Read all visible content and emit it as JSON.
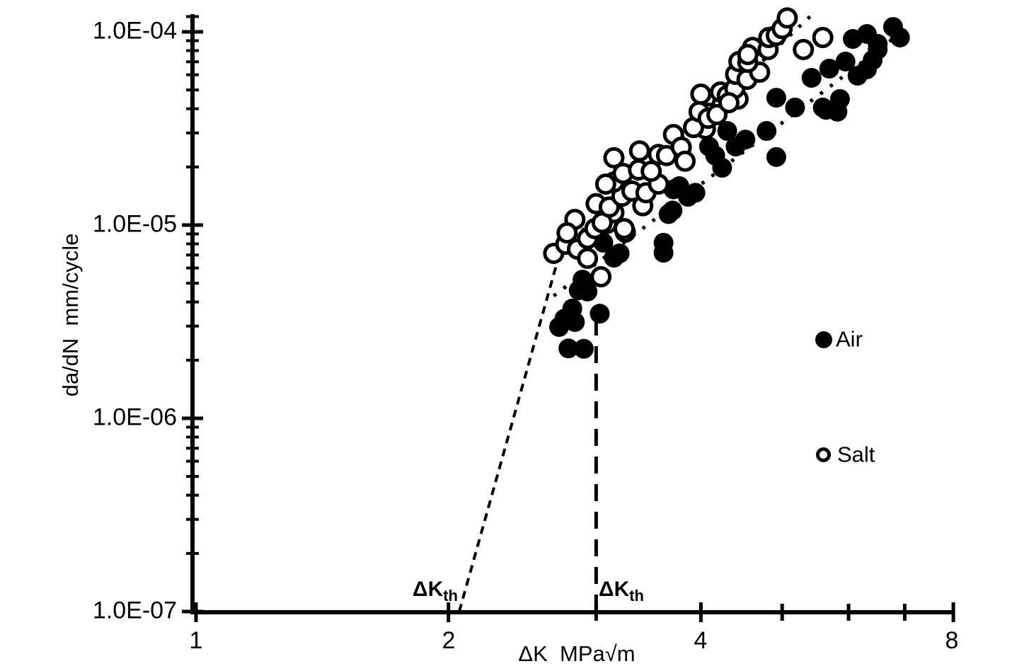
{
  "chart_data": {
    "type": "scatter",
    "title": "",
    "x_axis": {
      "title": "ΔK  MPa√m",
      "scale": "log",
      "min": 1,
      "max": 8,
      "tick_labels": [
        "1",
        "2",
        "4",
        "8"
      ],
      "ticks_major": [
        1,
        2,
        4,
        8
      ],
      "ticks_minor": [
        3,
        5,
        6,
        7
      ]
    },
    "y_axis": {
      "title": "da/dN  mm/cycle",
      "scale": "log",
      "min": 1e-07,
      "max": 0.00012,
      "tick_labels": [
        "1.0E-04",
        "1.0E-05",
        "1.0E-06",
        "1.0E-07"
      ],
      "ticks_major": [
        0.0001,
        1e-05,
        1e-06,
        1e-07
      ],
      "minor_tick_multipliers": [
        2,
        3,
        4,
        5,
        6,
        7,
        8,
        9
      ],
      "minor_tick_decades": [
        -5,
        -6,
        -7
      ],
      "top_minor_tick": 0.00012
    },
    "grid": false,
    "colors": {
      "ink": "#000000",
      "background": "#ffffff"
    },
    "legend": {
      "position": "right-middle",
      "items": [
        {
          "label": "Air",
          "marker": "filled-circle"
        },
        {
          "label": "Salt",
          "marker": "open-circle"
        }
      ]
    },
    "annotations": [
      {
        "text_main": "ΔK",
        "text_sub": "th",
        "refers_to": "Salt threshold (at ΔK ≈ 2.06)"
      },
      {
        "text_main": "ΔK",
        "text_sub": "th",
        "refers_to": "Air threshold (at ΔK ≈ 3.0)"
      }
    ],
    "lines": [
      {
        "name": "salt-threshold-dashed-line",
        "style": "dashed-fine",
        "points": [
          [
            2.06,
            1e-07
          ],
          [
            2.7,
            6.6e-06
          ]
        ]
      },
      {
        "name": "air-threshold-dashed-line",
        "style": "dashed-long",
        "points": [
          [
            3.0,
            1e-07
          ],
          [
            3.0,
            3.3e-06
          ]
        ]
      },
      {
        "name": "air-trend-dotted-line",
        "style": "dotted",
        "points": [
          [
            2.67,
            4.3e-06
          ],
          [
            6.95,
            0.0001
          ]
        ]
      },
      {
        "name": "salt-trend-dotted-line",
        "style": "dotted",
        "points": [
          [
            2.68,
            6.9e-06
          ],
          [
            5.43,
            0.000123
          ]
        ]
      }
    ],
    "series": [
      {
        "name": "Air",
        "marker": "filled-circle",
        "points": [
          [
            2.71,
            2.97e-06
          ],
          [
            2.75,
            3.28e-06
          ],
          [
            2.81,
            3.7e-06
          ],
          [
            2.83,
            3.15e-06
          ],
          [
            2.86,
            4.6e-06
          ],
          [
            2.93,
            4.53e-06
          ],
          [
            2.89,
            5.22e-06
          ],
          [
            2.78,
            2.3e-06
          ],
          [
            2.9,
            2.29e-06
          ],
          [
            3.03,
            3.48e-06
          ],
          [
            3.15,
            6.78e-06
          ],
          [
            3.06,
            8.1e-06
          ],
          [
            3.2,
            7.14e-06
          ],
          [
            3.61,
            7.19e-06
          ],
          [
            3.66,
            1.14e-05
          ],
          [
            3.71,
            1.53e-05
          ],
          [
            3.77,
            1.59e-05
          ],
          [
            3.86,
            1.4e-05
          ],
          [
            3.94,
            1.47e-05
          ],
          [
            3.61,
            8.1e-06
          ],
          [
            3.7,
            1.19e-05
          ],
          [
            4.09,
            2.55e-05
          ],
          [
            4.16,
            2.29e-05
          ],
          [
            4.24,
            1.98e-05
          ],
          [
            4.3,
            3.07e-05
          ],
          [
            4.4,
            2.55e-05
          ],
          [
            4.52,
            2.77e-05
          ],
          [
            4.79,
            3.07e-05
          ],
          [
            4.92,
            2.25e-05
          ],
          [
            4.92,
            4.56e-05
          ],
          [
            5.18,
            4.06e-05
          ],
          [
            5.42,
            5.78e-05
          ],
          [
            5.59,
            4.06e-05
          ],
          [
            5.64,
            3.95e-05
          ],
          [
            5.69,
            6.45e-05
          ],
          [
            5.82,
            3.86e-05
          ],
          [
            5.86,
            4.49e-05
          ],
          [
            5.95,
            7.02e-05
          ],
          [
            6.07,
            9.19e-05
          ],
          [
            6.15,
            5.93e-05
          ],
          [
            6.31,
            9.75e-05
          ],
          [
            6.31,
            6.4e-05
          ],
          [
            6.41,
            7.14e-05
          ],
          [
            6.5,
            8.66e-05
          ],
          [
            6.78,
            0.000106
          ],
          [
            6.91,
            9.35e-05
          ],
          [
            6.5,
            8.1e-05
          ]
        ]
      },
      {
        "name": "Salt",
        "marker": "open-circle",
        "points": [
          [
            2.67,
            7.14e-06
          ],
          [
            2.76,
            7.96e-06
          ],
          [
            2.83,
            1.07e-05
          ],
          [
            2.77,
            9.11e-06
          ],
          [
            2.85,
            7.51e-06
          ],
          [
            2.93,
            8.52e-06
          ],
          [
            2.99,
            9.59e-06
          ],
          [
            3.08,
            1.19e-05
          ],
          [
            3.09,
            1.02e-05
          ],
          [
            3.0,
            1.29e-05
          ],
          [
            2.93,
            6.73e-06
          ],
          [
            3.04,
            5.4e-06
          ],
          [
            3.25,
            9.19e-06
          ],
          [
            3.41,
            1.26e-05
          ],
          [
            3.15,
            1.16e-05
          ],
          [
            3.05,
            1.03e-05
          ],
          [
            3.11,
            1.24e-05
          ],
          [
            3.24,
            9.59e-06
          ],
          [
            3.22,
            1.41e-05
          ],
          [
            3.31,
            1.5e-05
          ],
          [
            3.44,
            1.47e-05
          ],
          [
            3.56,
            1.63e-05
          ],
          [
            3.15,
            1.67e-05
          ],
          [
            3.08,
            1.63e-05
          ],
          [
            3.23,
            1.85e-05
          ],
          [
            3.37,
            1.93e-05
          ],
          [
            3.49,
            1.9e-05
          ],
          [
            3.15,
            2.23e-05
          ],
          [
            3.38,
            2.42e-05
          ],
          [
            3.56,
            2.32e-05
          ],
          [
            3.64,
            2.29e-05
          ],
          [
            3.71,
            2.94e-05
          ],
          [
            3.79,
            2.53e-05
          ],
          [
            3.83,
            2.14e-05
          ],
          [
            4.05,
            3.15e-05
          ],
          [
            4.09,
            3.79e-05
          ],
          [
            4.24,
            4.2e-05
          ],
          [
            4.0,
            4.76e-05
          ],
          [
            4.43,
            4.49e-05
          ],
          [
            3.92,
            3.2e-05
          ],
          [
            3.98,
            3.86e-05
          ],
          [
            4.08,
            3.57e-05
          ],
          [
            4.18,
            3.73e-05
          ],
          [
            4.22,
            4.88e-05
          ],
          [
            4.3,
            4.68e-05
          ],
          [
            4.39,
            5.09e-05
          ],
          [
            4.32,
            4.3e-05
          ],
          [
            4.4,
            6.03e-05
          ],
          [
            4.54,
            5.68e-05
          ],
          [
            4.7,
            6.18e-05
          ],
          [
            4.44,
            7.02e-05
          ],
          [
            4.55,
            6.96e-05
          ],
          [
            4.61,
            8.31e-05
          ],
          [
            4.55,
            7.63e-05
          ],
          [
            4.81,
            8.1e-05
          ],
          [
            4.82,
            9.35e-05
          ],
          [
            4.92,
            9.59e-05
          ],
          [
            5.0,
            0.000104
          ],
          [
            5.07,
            0.000118
          ],
          [
            5.3,
            8.1e-05
          ],
          [
            5.59,
            9.35e-05
          ]
        ]
      }
    ]
  }
}
